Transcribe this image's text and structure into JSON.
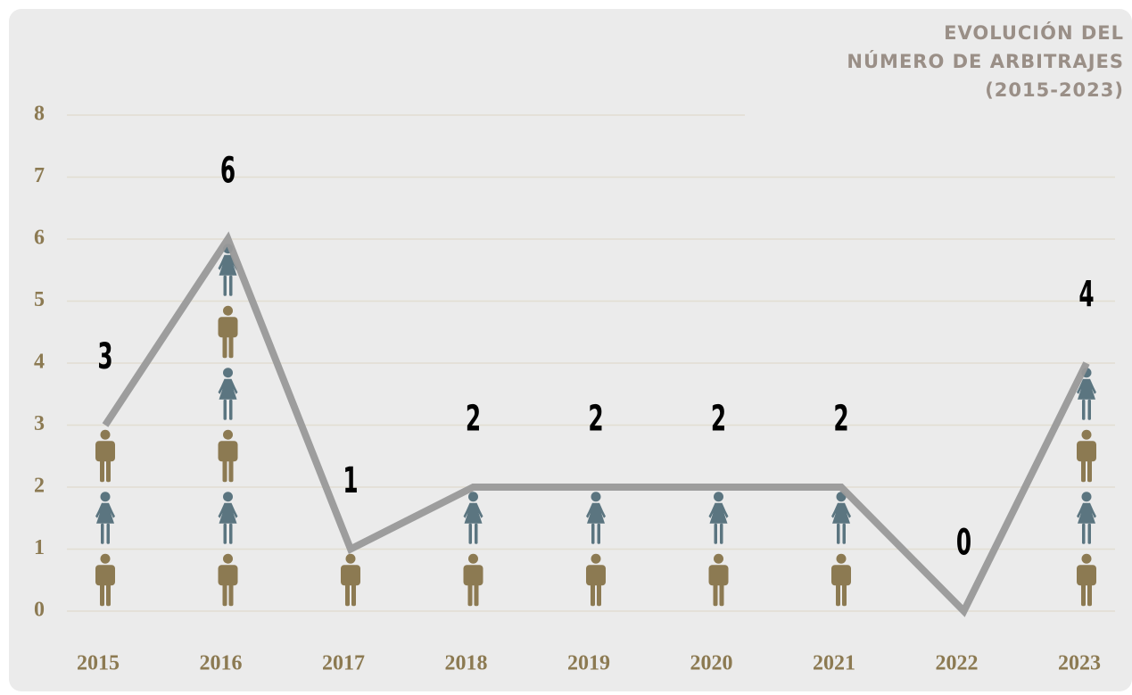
{
  "chart_data": {
    "type": "line",
    "title": [
      "EVOLUCIÓN DEL",
      "NÚMERO DE ARBITRAJES",
      "(2015-2023)"
    ],
    "categories": [
      "2015",
      "2016",
      "2017",
      "2018",
      "2019",
      "2020",
      "2021",
      "2022",
      "2023"
    ],
    "values": [
      3,
      6,
      1,
      2,
      2,
      2,
      2,
      0,
      4
    ],
    "color": "#999999",
    "icon_colors": [
      "#8c7a52",
      "#5b7580"
    ],
    "ylim": [
      0,
      8
    ],
    "yticks": [
      0,
      1,
      2,
      3,
      4,
      5,
      6,
      7,
      8
    ],
    "grid": true
  }
}
